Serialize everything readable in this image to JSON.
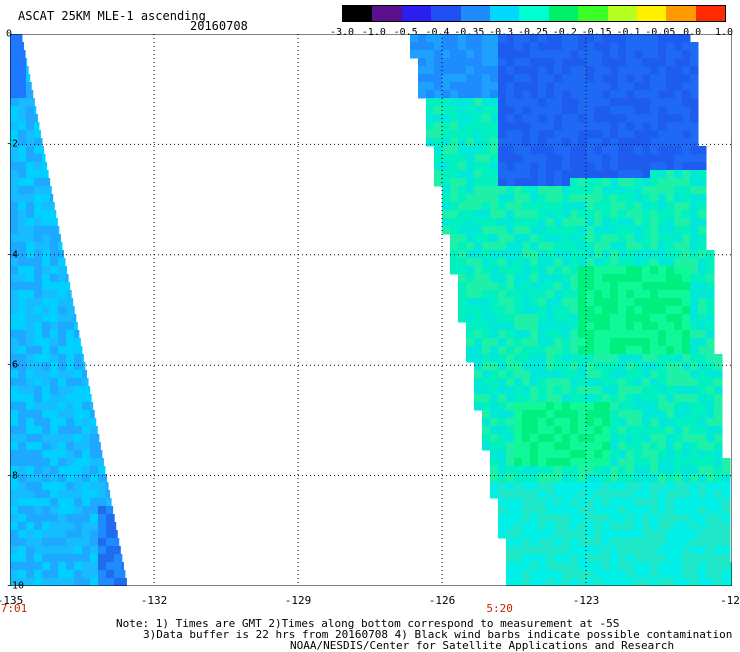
{
  "header": {
    "title": "ASCAT 25KM MLE-1 ascending",
    "date": "20160708"
  },
  "colorbar": {
    "labels": [
      "-3.0",
      "-1.0",
      "-0.5",
      "-0.4",
      "-0.35",
      "-0.3",
      "-0.25",
      "-0.2",
      "-0.15",
      "-0.1",
      "-0.05",
      "0.0",
      "1.0"
    ],
    "colors": [
      "#000000",
      "#5a0f8c",
      "#2a1ef0",
      "#1f4ff5",
      "#1e8cff",
      "#00d8ff",
      "#00ffd0",
      "#00f068",
      "#3cff28",
      "#b4ff1e",
      "#fff000",
      "#ff9a00",
      "#ff2a00"
    ]
  },
  "axes": {
    "x_ticks": [
      "-135",
      "-132",
      "-129",
      "-126",
      "-123",
      "-12"
    ],
    "y_ticks": [
      "0",
      "-2",
      "-4",
      "-6",
      "-8",
      "-10"
    ],
    "times": [
      {
        "label": "7:01",
        "lon": -135
      },
      {
        "label": "5:20",
        "lon": -124.8
      }
    ]
  },
  "notes": {
    "line1": "Note: 1) Times are GMT 2)Times along bottom correspond to measurement at -5S",
    "line2": "3)Data buffer is 22 hrs from 20160708 4) Black wind barbs indicate possible contamination",
    "line3": "NOAA/NESDIS/Center for Satellite Applications and Research"
  }
}
